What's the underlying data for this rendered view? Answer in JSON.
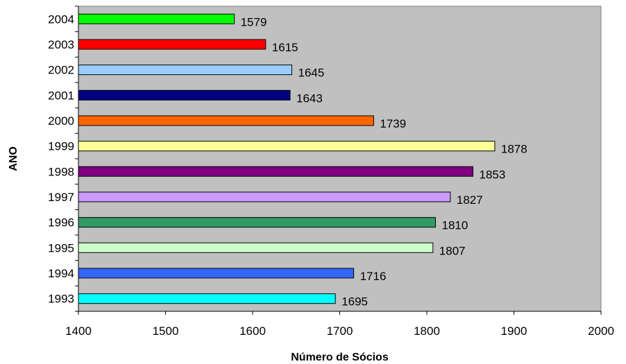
{
  "chart_data": {
    "type": "bar",
    "orientation": "horizontal",
    "categories": [
      "1993",
      "1994",
      "1995",
      "1996",
      "1997",
      "1998",
      "1999",
      "2000",
      "2001",
      "2002",
      "2003",
      "2004"
    ],
    "values": [
      1695,
      1716,
      1807,
      1810,
      1827,
      1853,
      1878,
      1739,
      1643,
      1645,
      1615,
      1579
    ],
    "data_labels": [
      "1695",
      "1716",
      "1807",
      "1810",
      "1827",
      "1853",
      "1878",
      "1739",
      "1643",
      "1645",
      "1615",
      "1579"
    ],
    "colors": [
      "#00FFFF",
      "#3366FF",
      "#CCFFCC",
      "#339966",
      "#CC99FF",
      "#800080",
      "#FFFF99",
      "#FF6600",
      "#000080",
      "#99CCFF",
      "#FF0000",
      "#00FF00"
    ],
    "xlabel": "Número de Sócios",
    "ylabel": "ANO",
    "xlim": [
      1400,
      2000
    ],
    "xticks": [
      1400,
      1500,
      1600,
      1700,
      1800,
      1900,
      2000
    ],
    "plot_background": "#C0C0C0",
    "grid": false,
    "legend": false
  }
}
